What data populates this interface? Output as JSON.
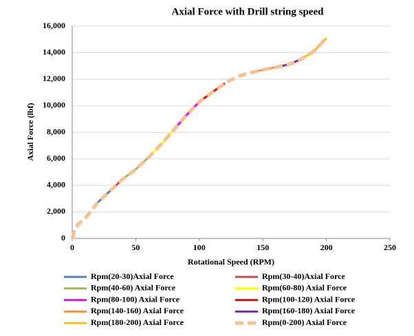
{
  "chart_data": {
    "type": "line",
    "title": "Axial Force with Drill string speed",
    "x_label": "Rotational Speed (RPM)",
    "y_label": "Axial Force (lbf)",
    "xlim": [
      0,
      250
    ],
    "xticks": [
      0,
      50,
      100,
      150,
      200,
      250
    ],
    "ylim": [
      0,
      16000
    ],
    "yticks": [
      0,
      {
        "value": 2000,
        "label": "2,000"
      },
      {
        "value": 4000,
        "label": "4,000"
      },
      {
        "value": 6000,
        "label": "6,000"
      },
      {
        "value": 8000,
        "label": "8,000"
      },
      {
        "value": 10000,
        "label": "10,000"
      },
      {
        "value": 12000,
        "label": "12,000"
      },
      {
        "value": 14000,
        "label": "14,000"
      },
      {
        "value": 16000,
        "label": "16,000"
      }
    ],
    "grid": true,
    "series": [
      {
        "name": "Rpm(20-30)Axial Force",
        "color": "#4f81bd",
        "x": [
          20,
          25,
          30
        ],
        "values": [
          2700,
          3150,
          3600
        ]
      },
      {
        "name": "Rpm(30-40)Axial Force",
        "color": "#c0504d",
        "x": [
          30,
          35,
          40
        ],
        "values": [
          3600,
          4050,
          4500
        ]
      },
      {
        "name": "Rpm(40-60) Axial Force",
        "color": "#9bbb59",
        "x": [
          40,
          50,
          60
        ],
        "values": [
          4500,
          5200,
          6100
        ]
      },
      {
        "name": "Rpm(60-80) Axial Force",
        "color": "#ffff00",
        "x": [
          60,
          70,
          80
        ],
        "values": [
          6100,
          7100,
          8200
        ]
      },
      {
        "name": "Rpm(80-100) Axial Force",
        "color": "#ff00ff",
        "x": [
          80,
          90,
          100
        ],
        "values": [
          8200,
          9300,
          10300
        ]
      },
      {
        "name": "Rpm(100-120) Axial Force",
        "color": "#ff0000",
        "x": [
          100,
          110,
          120
        ],
        "values": [
          10300,
          11000,
          11700
        ]
      },
      {
        "name": "Rpm(140-160) Axial Force",
        "color": "#f79646",
        "x": [
          140,
          150,
          160
        ],
        "values": [
          12500,
          12700,
          12900
        ]
      },
      {
        "name": "Rpm(160-180) Axial Force",
        "color": "#7030a0",
        "x": [
          160,
          170,
          180
        ],
        "values": [
          12900,
          13100,
          13500
        ]
      },
      {
        "name": "Rpm(180-200) Axial Force",
        "color": "#ffc000",
        "x": [
          180,
          190,
          200
        ],
        "values": [
          13500,
          14100,
          15100
        ]
      },
      {
        "name": "Rpm(0-200) Axial Force",
        "color": "#fac090",
        "dashed": true,
        "x": [
          0,
          2,
          5,
          10,
          20,
          30,
          40,
          50,
          60,
          70,
          80,
          90,
          100,
          110,
          120,
          130,
          140,
          150,
          160,
          170,
          180,
          190,
          200
        ],
        "values": [
          0,
          700,
          1100,
          1500,
          2700,
          3600,
          4500,
          5200,
          6100,
          7100,
          8200,
          9300,
          10300,
          11000,
          11700,
          12200,
          12500,
          12700,
          12900,
          13100,
          13500,
          14100,
          15100
        ]
      }
    ]
  }
}
